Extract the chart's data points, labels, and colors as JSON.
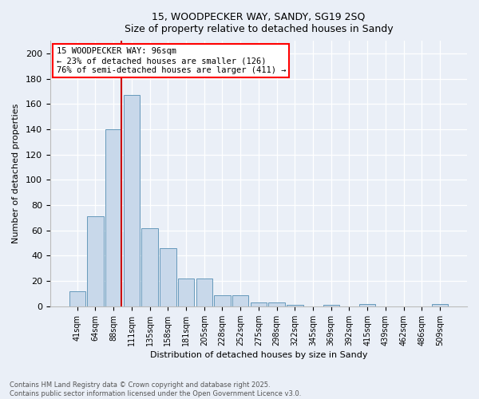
{
  "title_line1": "15, WOODPECKER WAY, SANDY, SG19 2SQ",
  "title_line2": "Size of property relative to detached houses in Sandy",
  "xlabel": "Distribution of detached houses by size in Sandy",
  "ylabel": "Number of detached properties",
  "bar_labels": [
    "41sqm",
    "64sqm",
    "88sqm",
    "111sqm",
    "135sqm",
    "158sqm",
    "181sqm",
    "205sqm",
    "228sqm",
    "252sqm",
    "275sqm",
    "298sqm",
    "322sqm",
    "345sqm",
    "369sqm",
    "392sqm",
    "415sqm",
    "439sqm",
    "462sqm",
    "486sqm",
    "509sqm"
  ],
  "bar_values": [
    12,
    71,
    140,
    167,
    62,
    46,
    22,
    22,
    9,
    9,
    3,
    3,
    1,
    0,
    1,
    0,
    2,
    0,
    0,
    0,
    2
  ],
  "bar_color": "#c8d8ea",
  "bar_edge_color": "#6699bb",
  "annotation_text": "15 WOODPECKER WAY: 96sqm\n← 23% of detached houses are smaller (126)\n76% of semi-detached houses are larger (411) →",
  "vline_color": "#cc0000",
  "vline_x_index": 2,
  "footer_text": "Contains HM Land Registry data © Crown copyright and database right 2025.\nContains public sector information licensed under the Open Government Licence v3.0.",
  "bg_color": "#eaeff7",
  "ylim_max": 210,
  "yticks": [
    0,
    20,
    40,
    60,
    80,
    100,
    120,
    140,
    160,
    180,
    200
  ]
}
